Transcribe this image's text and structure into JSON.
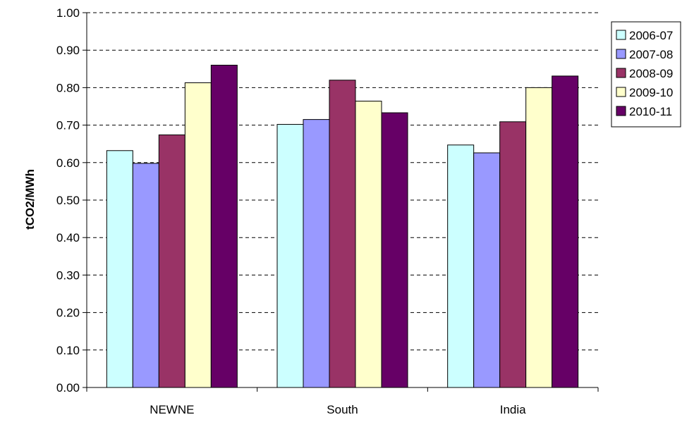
{
  "chart_data": {
    "type": "bar",
    "title": "",
    "xlabel": "",
    "ylabel": "tCO2/MWh",
    "ylim": [
      0,
      1.0
    ],
    "yticks": [
      "0.00",
      "0.10",
      "0.20",
      "0.30",
      "0.40",
      "0.50",
      "0.60",
      "0.70",
      "0.80",
      "0.90",
      "1.00"
    ],
    "grid": "horizontal-dashed",
    "legend_position": "right",
    "categories": [
      "NEWNE",
      "South",
      "India"
    ],
    "series": [
      {
        "name": "2006-07",
        "color": "#CCFFFF",
        "values": [
          0.632,
          0.702,
          0.647
        ]
      },
      {
        "name": "2007-08",
        "color": "#9999FF",
        "values": [
          0.598,
          0.715,
          0.626
        ]
      },
      {
        "name": "2008-09",
        "color": "#993366",
        "values": [
          0.674,
          0.82,
          0.709
        ]
      },
      {
        "name": "2009-10",
        "color": "#FFFFCC",
        "values": [
          0.813,
          0.764,
          0.8
        ]
      },
      {
        "name": "2010-11",
        "color": "#660066",
        "values": [
          0.86,
          0.733,
          0.831
        ]
      }
    ]
  }
}
